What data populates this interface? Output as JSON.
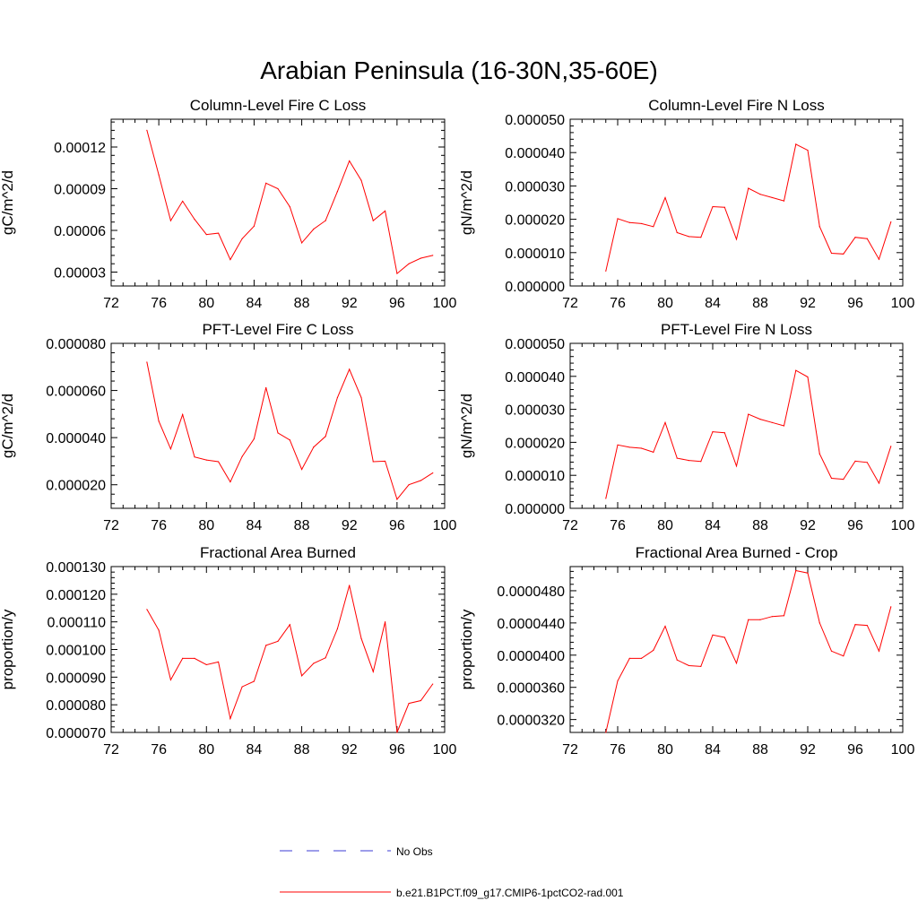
{
  "title": "Arabian Peninsula (16-30N,35-60E)",
  "colors": {
    "model_line": "#ff0000",
    "obs_line": "#3b3bd6",
    "axis": "#000000"
  },
  "legend": {
    "entries": [
      {
        "label": "No Obs",
        "style": "dashed",
        "color": "#3b3bd6"
      },
      {
        "label": "b.e21.B1PCT.f09_g17.CMIP6-1pctCO2-rad.001",
        "style": "solid",
        "color": "#ff0000"
      }
    ]
  },
  "chart_data": [
    {
      "type": "line",
      "title": "Column-Level Fire C Loss",
      "ylabel": "gC/m^2/d",
      "xlim": [
        72,
        100
      ],
      "xticks": [
        "72",
        "76",
        "80",
        "84",
        "88",
        "92",
        "96",
        "100"
      ],
      "ylim": [
        2e-05,
        0.00014
      ],
      "yticks": [
        {
          "v": 3e-05,
          "label": "0.00003"
        },
        {
          "v": 6e-05,
          "label": "0.00006"
        },
        {
          "v": 9e-05,
          "label": "0.00009"
        },
        {
          "v": 0.00012,
          "label": "0.00012"
        }
      ],
      "series": [
        {
          "x": [
            75,
            76,
            77,
            78,
            79,
            80,
            81,
            82,
            83,
            84,
            85,
            86,
            87,
            88,
            89,
            90,
            91,
            92,
            93,
            94,
            95,
            96,
            97,
            98,
            99
          ],
          "values": [
            0.000132,
            0.0001,
            6.7e-05,
            8.1e-05,
            6.8e-05,
            5.7e-05,
            5.8e-05,
            3.9e-05,
            5.4e-05,
            6.3e-05,
            9.4e-05,
            9e-05,
            7.7e-05,
            5.1e-05,
            6.1e-05,
            6.7e-05,
            8.8e-05,
            0.00011,
            9.6e-05,
            6.7e-05,
            7.4e-05,
            2.9e-05,
            3.6e-05,
            4e-05,
            4.2e-05
          ]
        }
      ]
    },
    {
      "type": "line",
      "title": "Column-Level Fire N Loss",
      "ylabel": "gN/m^2/d",
      "xlim": [
        72,
        100
      ],
      "xticks": [
        "72",
        "76",
        "80",
        "84",
        "88",
        "92",
        "96",
        "100"
      ],
      "ylim": [
        0,
        5e-05
      ],
      "yticks": [
        {
          "v": 0,
          "label": "0.000000"
        },
        {
          "v": 1e-05,
          "label": "0.000010"
        },
        {
          "v": 2e-05,
          "label": "0.000020"
        },
        {
          "v": 3e-05,
          "label": "0.000030"
        },
        {
          "v": 4e-05,
          "label": "0.000040"
        },
        {
          "v": 5e-05,
          "label": "0.000050"
        }
      ],
      "series": [
        {
          "x": [
            75,
            76,
            77,
            78,
            79,
            80,
            81,
            82,
            83,
            84,
            85,
            86,
            87,
            88,
            89,
            90,
            91,
            92,
            93,
            94,
            95,
            96,
            97,
            98,
            99
          ],
          "values": [
            4.5e-06,
            2.02e-05,
            1.9e-05,
            1.87e-05,
            1.78e-05,
            2.65e-05,
            1.6e-05,
            1.48e-05,
            1.46e-05,
            2.38e-05,
            2.36e-05,
            1.4e-05,
            2.93e-05,
            2.75e-05,
            2.65e-05,
            2.55e-05,
            4.25e-05,
            4.07e-05,
            1.78e-05,
            9.8e-06,
            9.6e-06,
            1.46e-05,
            1.42e-05,
            8e-06,
            1.92e-05
          ]
        }
      ]
    },
    {
      "type": "line",
      "title": "PFT-Level Fire C Loss",
      "ylabel": "gC/m^2/d",
      "xlim": [
        72,
        100
      ],
      "xticks": [
        "72",
        "76",
        "80",
        "84",
        "88",
        "92",
        "96",
        "100"
      ],
      "ylim": [
        1e-05,
        8e-05
      ],
      "yticks": [
        {
          "v": 2e-05,
          "label": "0.000020"
        },
        {
          "v": 4e-05,
          "label": "0.000040"
        },
        {
          "v": 6e-05,
          "label": "0.000060"
        },
        {
          "v": 8e-05,
          "label": "0.000080"
        }
      ],
      "series": [
        {
          "x": [
            75,
            76,
            77,
            78,
            79,
            80,
            81,
            82,
            83,
            84,
            85,
            86,
            87,
            88,
            89,
            90,
            91,
            92,
            93,
            94,
            95,
            96,
            97,
            98,
            99
          ],
          "values": [
            7.2e-05,
            4.7e-05,
            3.52e-05,
            4.98e-05,
            3.18e-05,
            3.05e-05,
            2.98e-05,
            2.12e-05,
            3.2e-05,
            3.95e-05,
            6.12e-05,
            4.2e-05,
            3.9e-05,
            2.65e-05,
            3.6e-05,
            4.05e-05,
            5.7e-05,
            6.9e-05,
            5.7e-05,
            2.98e-05,
            3e-05,
            1.38e-05,
            2e-05,
            2.18e-05,
            2.5e-05
          ]
        }
      ]
    },
    {
      "type": "line",
      "title": "PFT-Level Fire N Loss",
      "ylabel": "gN/m^2/d",
      "xlim": [
        72,
        100
      ],
      "xticks": [
        "72",
        "76",
        "80",
        "84",
        "88",
        "92",
        "96",
        "100"
      ],
      "ylim": [
        0,
        5e-05
      ],
      "yticks": [
        {
          "v": 0,
          "label": "0.000000"
        },
        {
          "v": 1e-05,
          "label": "0.000010"
        },
        {
          "v": 2e-05,
          "label": "0.000020"
        },
        {
          "v": 3e-05,
          "label": "0.000030"
        },
        {
          "v": 4e-05,
          "label": "0.000040"
        },
        {
          "v": 5e-05,
          "label": "0.000050"
        }
      ],
      "series": [
        {
          "x": [
            75,
            76,
            77,
            78,
            79,
            80,
            81,
            82,
            83,
            84,
            85,
            86,
            87,
            88,
            89,
            90,
            91,
            92,
            93,
            94,
            95,
            96,
            97,
            98,
            99
          ],
          "values": [
            3e-06,
            1.92e-05,
            1.85e-05,
            1.82e-05,
            1.7e-05,
            2.6e-05,
            1.52e-05,
            1.45e-05,
            1.42e-05,
            2.32e-05,
            2.29e-05,
            1.28e-05,
            2.85e-05,
            2.7e-05,
            2.6e-05,
            2.5e-05,
            4.18e-05,
            3.98e-05,
            1.65e-05,
            9.1e-06,
            8.8e-06,
            1.43e-05,
            1.39e-05,
            7.6e-06,
            1.88e-05
          ]
        }
      ]
    },
    {
      "type": "line",
      "title": "Fractional Area Burned",
      "ylabel": "proportion/y",
      "xlim": [
        72,
        100
      ],
      "xticks": [
        "72",
        "76",
        "80",
        "84",
        "88",
        "92",
        "96",
        "100"
      ],
      "ylim": [
        7e-05,
        0.00013
      ],
      "yticks": [
        {
          "v": 7e-05,
          "label": "0.000070"
        },
        {
          "v": 8e-05,
          "label": "0.000080"
        },
        {
          "v": 9e-05,
          "label": "0.000090"
        },
        {
          "v": 0.0001,
          "label": "0.000100"
        },
        {
          "v": 0.00011,
          "label": "0.000110"
        },
        {
          "v": 0.00012,
          "label": "0.000120"
        },
        {
          "v": 0.00013,
          "label": "0.000130"
        }
      ],
      "series": [
        {
          "x": [
            75,
            76,
            77,
            78,
            79,
            80,
            81,
            82,
            83,
            84,
            85,
            86,
            87,
            88,
            89,
            90,
            91,
            92,
            93,
            94,
            95,
            96,
            97,
            98,
            99
          ],
          "values": [
            0.0001145,
            0.000107,
            8.9e-05,
            9.68e-05,
            9.68e-05,
            9.45e-05,
            9.55e-05,
            7.5e-05,
            8.65e-05,
            8.85e-05,
            0.0001015,
            0.000103,
            0.000109,
            9.05e-05,
            9.5e-05,
            9.7e-05,
            0.0001075,
            0.0001232,
            0.000104,
            9.2e-05,
            0.00011,
            7e-05,
            8.05e-05,
            8.15e-05,
            8.75e-05
          ]
        }
      ]
    },
    {
      "type": "line",
      "title": "Fractional Area Burned - Crop",
      "ylabel": "proportion/y",
      "xlim": [
        72,
        100
      ],
      "xticks": [
        "72",
        "76",
        "80",
        "84",
        "88",
        "92",
        "96",
        "100"
      ],
      "ylim": [
        3.04e-05,
        5.1e-05
      ],
      "yticks": [
        {
          "v": 3.2e-05,
          "label": "0.0000320"
        },
        {
          "v": 3.6e-05,
          "label": "0.0000360"
        },
        {
          "v": 4e-05,
          "label": "0.0000400"
        },
        {
          "v": 4.4e-05,
          "label": "0.0000440"
        },
        {
          "v": 4.8e-05,
          "label": "0.0000480"
        }
      ],
      "series": [
        {
          "x": [
            75,
            76,
            77,
            78,
            79,
            80,
            81,
            82,
            83,
            84,
            85,
            86,
            87,
            88,
            89,
            90,
            91,
            92,
            93,
            94,
            95,
            96,
            97,
            98,
            99
          ],
          "values": [
            3.04e-05,
            3.68e-05,
            3.96e-05,
            3.96e-05,
            4.06e-05,
            4.36e-05,
            3.94e-05,
            3.87e-05,
            3.86e-05,
            4.25e-05,
            4.22e-05,
            3.9e-05,
            4.44e-05,
            4.44e-05,
            4.48e-05,
            4.49e-05,
            5.05e-05,
            5.02e-05,
            4.4e-05,
            4.05e-05,
            3.99e-05,
            4.38e-05,
            4.37e-05,
            4.05e-05,
            4.6e-05
          ]
        }
      ]
    }
  ]
}
